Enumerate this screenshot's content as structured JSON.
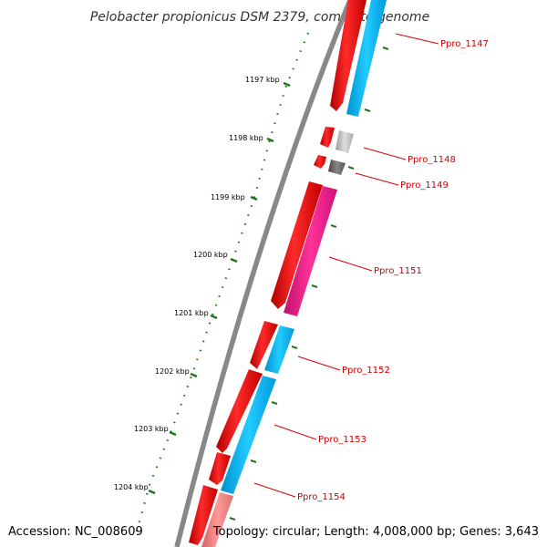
{
  "title": "Pelobacter propionicus DSM 2379, complete genome",
  "accession": "Accession: NC_008609",
  "topology": "Topology: circular; Length: 4,008,000 bp; Genes: 3,643",
  "ruler": {
    "tick_color": "#1a7a1a",
    "labels": [
      "1197 kbp",
      "1198 kbp",
      "1199 kbp",
      "1200 kbp",
      "1201 kbp",
      "1202 kbp",
      "1203 kbp",
      "1204 kbp"
    ]
  },
  "colors": {
    "backbone": "#888888",
    "cds": "#ff0000",
    "cog_light_blue": "#00bfff",
    "cog_light_gray": "#bbbbbb",
    "cog_dark_gray": "#666666",
    "cog_magenta": "#ff1493",
    "pink_feature": "#f08080",
    "label_red": "#cc0000"
  },
  "genes": [
    {
      "label": "Ppro_1147"
    },
    {
      "label": "Ppro_1148"
    },
    {
      "label": "Ppro_1149"
    },
    {
      "label": "Ppro_1151"
    },
    {
      "label": "Ppro_1152"
    },
    {
      "label": "Ppro_1153"
    },
    {
      "label": "Ppro_1154"
    }
  ]
}
